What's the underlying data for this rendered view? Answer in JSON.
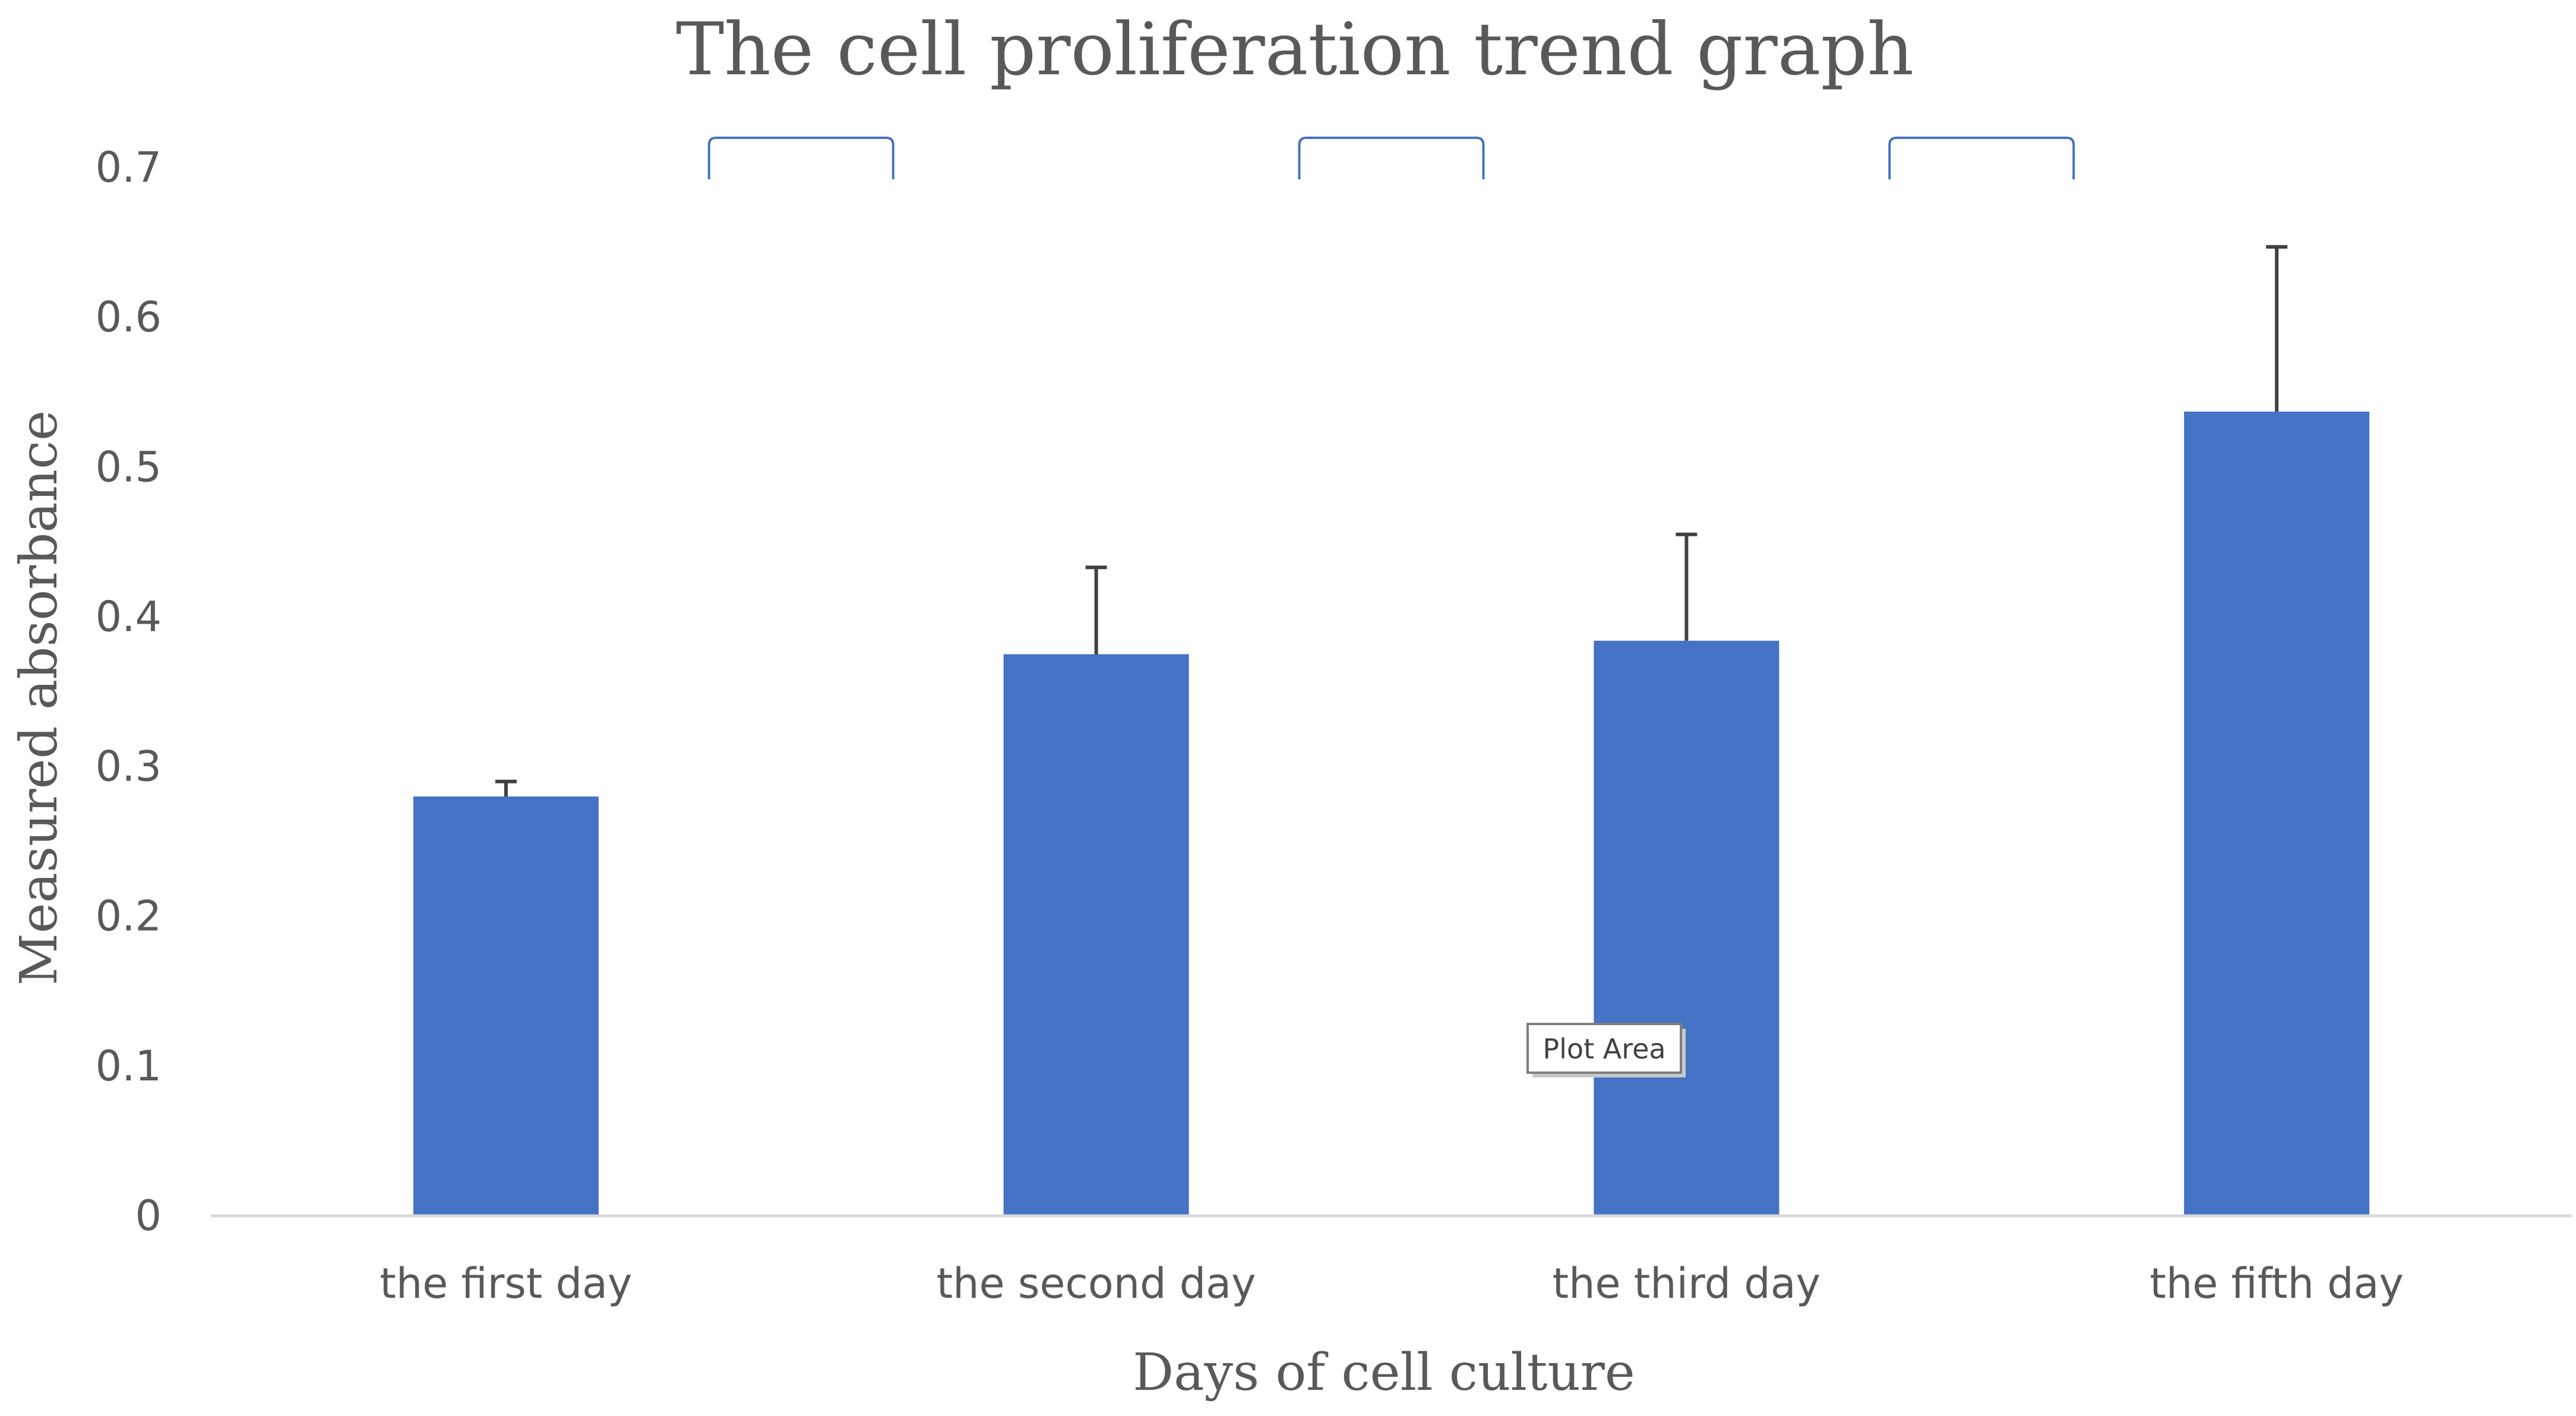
{
  "chart_data": {
    "type": "bar",
    "title": "The cell proliferation trend graph",
    "xlabel": "Days of cell culture",
    "ylabel": "Measured absorbance",
    "categories": [
      "the first day",
      "the second day",
      "the third day",
      "the fifth day"
    ],
    "values": [
      0.28,
      0.375,
      0.384,
      0.537
    ],
    "error_plus": [
      0.01,
      0.058,
      0.071,
      0.11
    ],
    "ylim": [
      0,
      0.7
    ],
    "yticks": [
      "0",
      "0.1",
      "0.2",
      "0.3",
      "0.4",
      "0.5",
      "0.6",
      "0.7"
    ],
    "grid": false,
    "legend": "none",
    "bar_color": "#4472C4",
    "error_color": "#404040",
    "bracket_color": "#4472C4",
    "brackets": [
      {
        "from": "the first day",
        "to": "the second day"
      },
      {
        "from": "the second day",
        "to": "the third day"
      },
      {
        "from": "the third day",
        "to": "the fifth day"
      }
    ]
  },
  "tooltip": {
    "label": "Plot Area"
  }
}
